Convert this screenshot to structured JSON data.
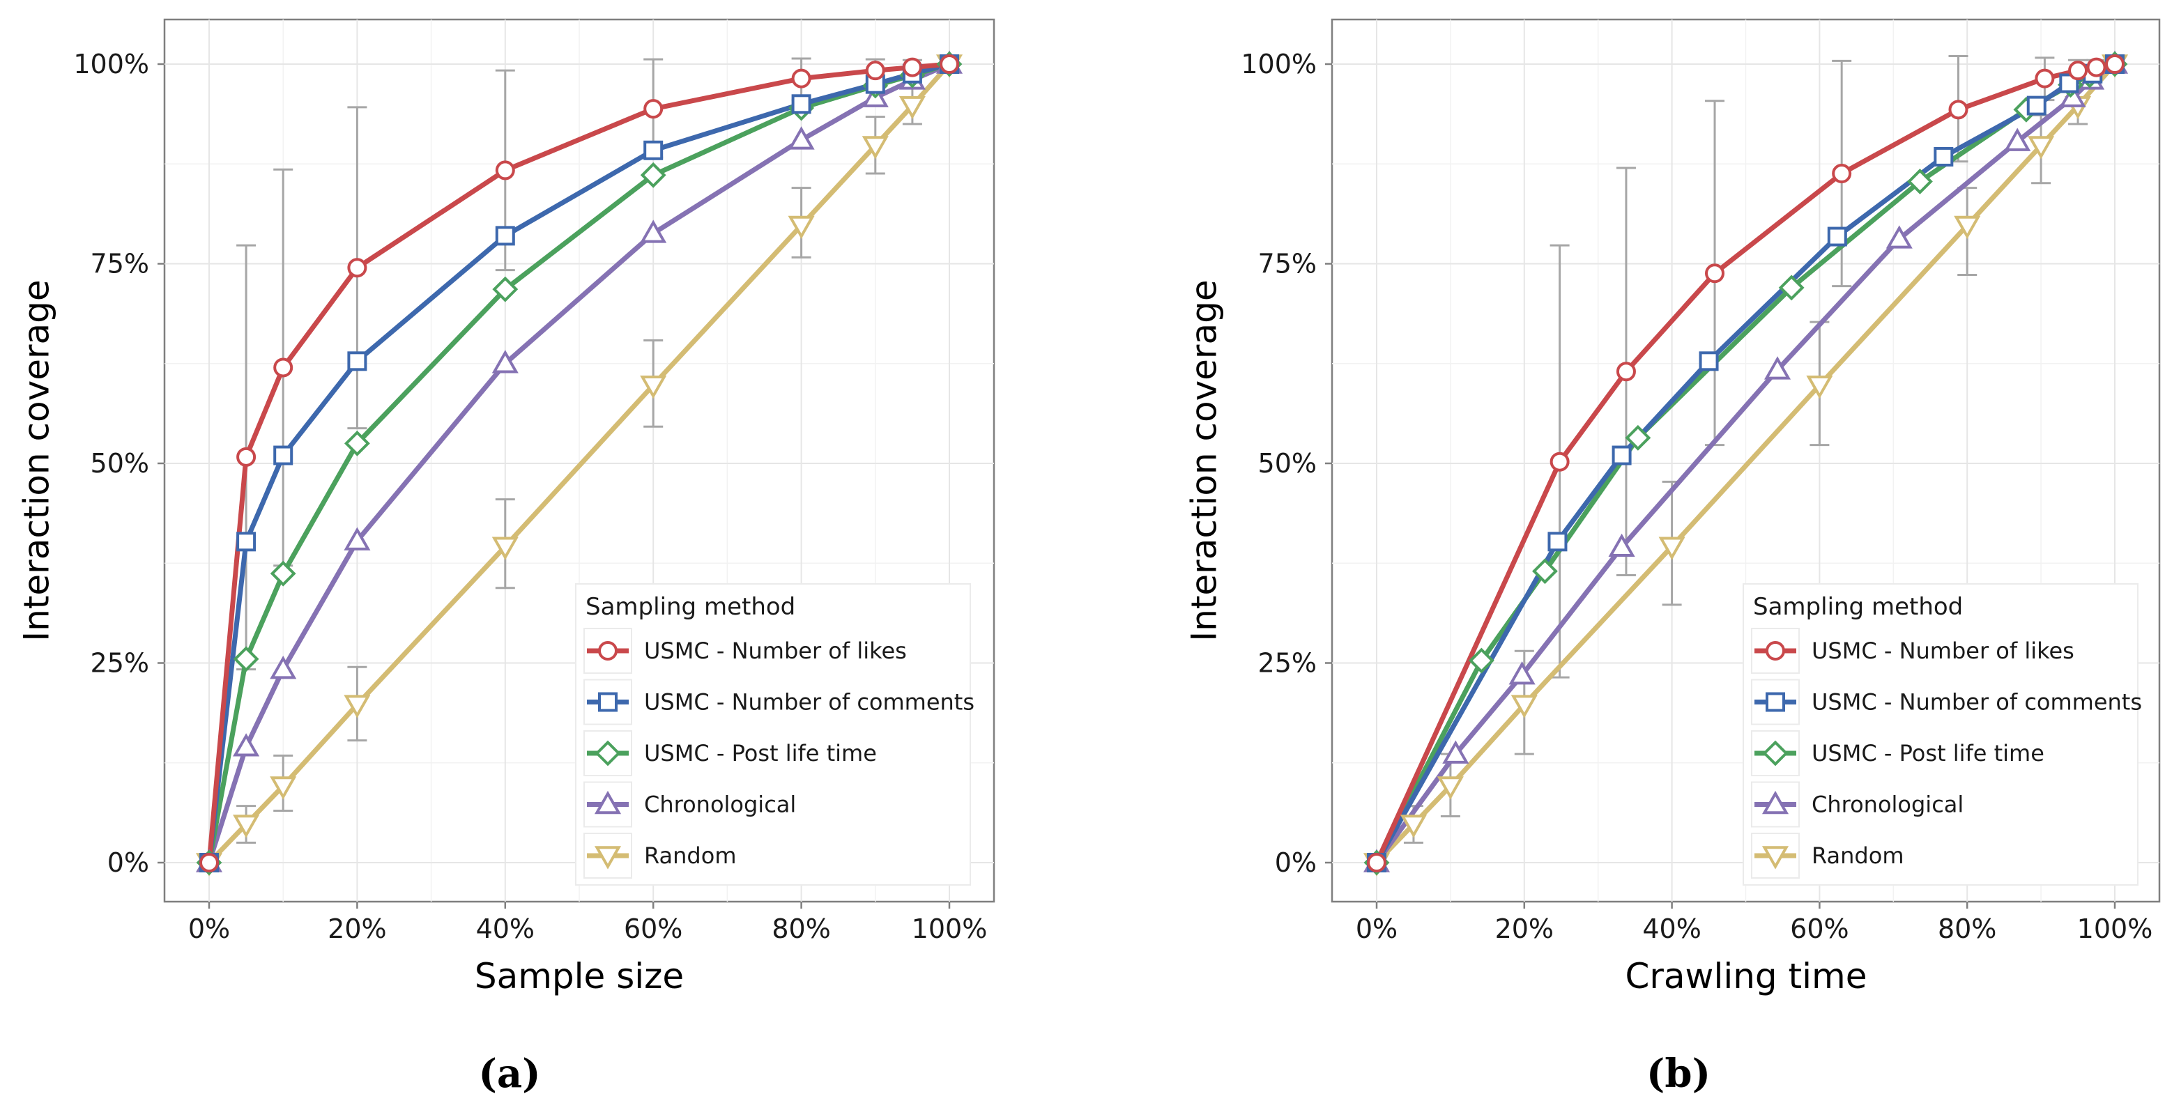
{
  "chart_data": [
    {
      "type": "line",
      "panel_label": "(a)",
      "xlabel": "Sample size",
      "ylabel": "Interaction coverage",
      "xlim": [
        0,
        100
      ],
      "ylim": [
        0,
        100
      ],
      "x_ticks": [
        "0%",
        "20%",
        "40%",
        "60%",
        "80%",
        "100%"
      ],
      "y_ticks": [
        "0%",
        "25%",
        "50%",
        "75%",
        "100%"
      ],
      "grid": true,
      "legend_title": "Sampling method",
      "legend_position": "bottom-right",
      "series": [
        {
          "name": "USMC - Number of likes",
          "color": "#c9484b",
          "marker": "circle",
          "x": [
            0,
            5,
            10,
            20,
            40,
            60,
            80,
            90,
            95,
            100
          ],
          "y": [
            0,
            50.8,
            62,
            74.5,
            86.7,
            94.4,
            98.2,
            99.2,
            99.6,
            100
          ],
          "err": [
            [
              0,
              0
            ],
            [
              24.2,
              77.3
            ],
            [
              37.2,
              86.8
            ],
            [
              54.4,
              94.6
            ],
            [
              74.2,
              99.2
            ],
            [
              88.3,
              100.6
            ],
            [
              95.5,
              100.7
            ],
            [
              97.5,
              100.6
            ],
            [
              98.5,
              100.5
            ],
            [
              100,
              100
            ]
          ]
        },
        {
          "name": "USMC - Number of comments",
          "color": "#3d68ad",
          "marker": "square",
          "x": [
            0,
            5,
            10,
            20,
            40,
            60,
            80,
            90,
            95,
            100
          ],
          "y": [
            0,
            40.2,
            51,
            62.8,
            78.5,
            89.2,
            95,
            97.5,
            98.8,
            100
          ]
        },
        {
          "name": "USMC - Post life time",
          "color": "#4ba15d",
          "marker": "diamond",
          "x": [
            0,
            5,
            10,
            20,
            40,
            60,
            80,
            90,
            95,
            100
          ],
          "y": [
            0,
            25.5,
            36.2,
            52.5,
            71.8,
            86.1,
            94.5,
            97.3,
            98.6,
            100
          ]
        },
        {
          "name": "Chronological",
          "color": "#8572b3",
          "marker": "triangle-up",
          "x": [
            0,
            5,
            10,
            20,
            40,
            60,
            80,
            90,
            95,
            100
          ],
          "y": [
            0,
            14.5,
            24.2,
            40.3,
            62.5,
            78.8,
            90.5,
            95.8,
            98,
            100
          ]
        },
        {
          "name": "Random",
          "color": "#d4bc73",
          "marker": "triangle-down",
          "x": [
            0,
            5,
            10,
            20,
            40,
            60,
            80,
            90,
            95,
            100
          ],
          "y": [
            0,
            4.8,
            9.6,
            19.8,
            39.6,
            59.8,
            79.8,
            89.8,
            94.8,
            100
          ],
          "err": [
            [
              0,
              0
            ],
            [
              2.5,
              7.1
            ],
            [
              6.5,
              13.4
            ],
            [
              15.3,
              24.5
            ],
            [
              34.4,
              45.5
            ],
            [
              54.6,
              65.4
            ],
            [
              75.8,
              84.5
            ],
            [
              86.3,
              93.4
            ],
            [
              92.5,
              97.4
            ],
            [
              100,
              100
            ]
          ]
        }
      ]
    },
    {
      "type": "line",
      "panel_label": "(b)",
      "xlabel": "Crawling time",
      "ylabel": "Interaction coverage",
      "xlim": [
        0,
        100
      ],
      "ylim": [
        0,
        100
      ],
      "x_ticks": [
        "0%",
        "20%",
        "40%",
        "60%",
        "80%",
        "100%"
      ],
      "y_ticks": [
        "0%",
        "25%",
        "50%",
        "75%",
        "100%"
      ],
      "grid": true,
      "legend_title": "Sampling method",
      "legend_position": "bottom-right",
      "series": [
        {
          "name": "USMC - Number of likes",
          "color": "#c9484b",
          "marker": "circle",
          "x": [
            0,
            24.8,
            33.8,
            45.8,
            63,
            78.8,
            90.5,
            95,
            97.5,
            100
          ],
          "y": [
            0,
            50.2,
            61.5,
            73.8,
            86.3,
            94.3,
            98.2,
            99.2,
            99.6,
            100
          ],
          "err": [
            [
              0,
              0
            ],
            [
              23.2,
              77.3
            ],
            [
              36,
              87
            ],
            [
              52.3,
              95.4
            ],
            [
              72.2,
              100.4
            ],
            [
              87.8,
              101
            ],
            [
              95.5,
              100.8
            ],
            [
              97.5,
              100.5
            ],
            [
              98.5,
              100.5
            ],
            [
              100,
              100
            ]
          ]
        },
        {
          "name": "USMC - Number of comments",
          "color": "#3d68ad",
          "marker": "square",
          "x": [
            0,
            24.5,
            33.2,
            45,
            62.4,
            76.8,
            89.4,
            93.8,
            97,
            100
          ],
          "y": [
            0,
            40.2,
            51,
            62.8,
            78.4,
            88.4,
            94.8,
            97.6,
            98.8,
            100
          ]
        },
        {
          "name": "USMC - Post life time",
          "color": "#4ba15d",
          "marker": "diamond",
          "x": [
            0,
            14.2,
            22.8,
            35.4,
            56.2,
            73.6,
            88,
            94,
            96.6,
            100
          ],
          "y": [
            0,
            25.3,
            36.5,
            53.2,
            72,
            85.3,
            94.3,
            97.4,
            98.6,
            100
          ]
        },
        {
          "name": "Chronological",
          "color": "#8572b3",
          "marker": "triangle-up",
          "x": [
            0,
            10.7,
            19.7,
            33.2,
            54.3,
            70.8,
            86.8,
            94.3,
            96.8,
            100
          ],
          "y": [
            0,
            13.6,
            23.5,
            39.5,
            61.7,
            78.1,
            90.3,
            95.8,
            98,
            100
          ]
        },
        {
          "name": "Random",
          "color": "#d4bc73",
          "marker": "triangle-down",
          "x": [
            0,
            5,
            10,
            20,
            40,
            60,
            80,
            90,
            95,
            100
          ],
          "y": [
            0,
            4.8,
            9.6,
            19.8,
            39.6,
            59.8,
            79.8,
            89.8,
            94.8,
            100
          ],
          "err": [
            [
              0,
              0
            ],
            [
              2.5,
              7.1
            ],
            [
              5.8,
              13.6
            ],
            [
              13.6,
              26.5
            ],
            [
              32.3,
              47.7
            ],
            [
              52.3,
              67.7
            ],
            [
              73.6,
              84.5
            ],
            [
              85.1,
              93.6
            ],
            [
              92.5,
              97.4
            ],
            [
              100,
              100
            ]
          ]
        }
      ]
    }
  ]
}
